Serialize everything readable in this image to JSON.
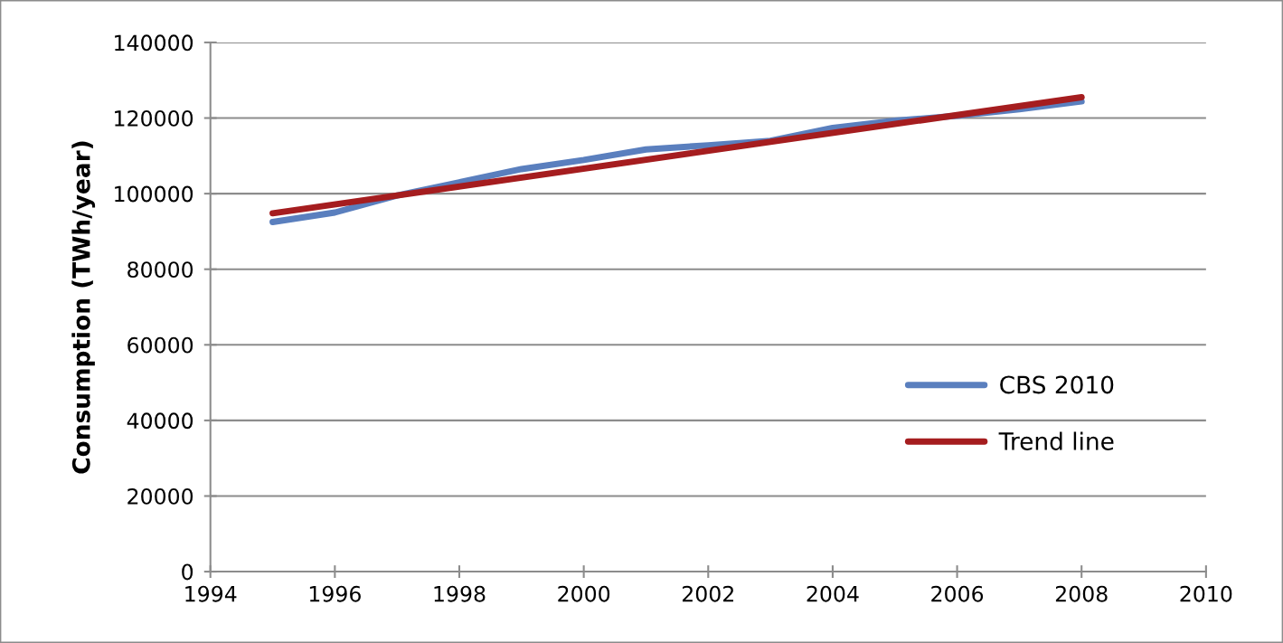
{
  "chart_data": {
    "type": "line",
    "ylabel": "Consumption (TWh/year)",
    "series": [
      {
        "name": "CBS 2010",
        "color": "#5a7fbe",
        "x": [
          1995,
          1996,
          1997,
          1998,
          1999,
          2000,
          2001,
          2002,
          2003,
          2004,
          2005,
          2006,
          2007,
          2008
        ],
        "values": [
          92500,
          95000,
          99500,
          103000,
          106500,
          108900,
          111700,
          112800,
          114000,
          117400,
          119300,
          120600,
          122300,
          124400
        ]
      },
      {
        "name": "Trend line",
        "color": "#a51d1f",
        "x": [
          1995,
          2008
        ],
        "values": [
          94800,
          125500
        ]
      }
    ],
    "xlim": [
      1994,
      2010
    ],
    "xticks": [
      1994,
      1996,
      1998,
      2000,
      2002,
      2004,
      2006,
      2008,
      2010
    ],
    "ylim": [
      0,
      140000
    ],
    "yticks": [
      0,
      20000,
      40000,
      60000,
      80000,
      100000,
      120000,
      140000
    ],
    "grid": "y",
    "legend": "lower right",
    "marker": "none",
    "line_style": "solid"
  }
}
